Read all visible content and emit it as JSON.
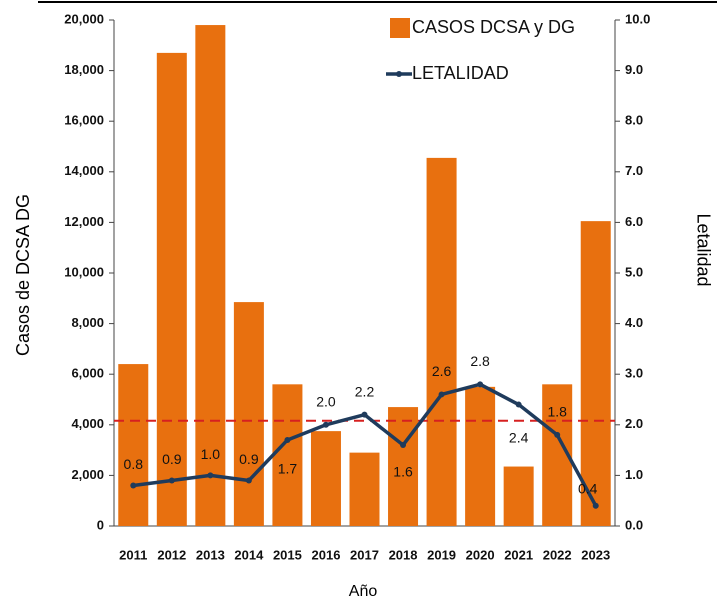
{
  "chart_data": {
    "type": "bar_line",
    "y_label": "Casos de DCSA  DG",
    "y2_label": "Letalidad",
    "x_label": "Año",
    "categories": [
      "2011",
      "2012",
      "2013",
      "2014",
      "2015",
      "2016",
      "2017",
      "2018",
      "2019",
      "2020",
      "2021",
      "2022",
      "2023"
    ],
    "series": [
      {
        "name": "CASOS DCSA y DG",
        "type": "bar",
        "color": "#e8700f",
        "values": [
          6400,
          18700,
          19800,
          8850,
          5600,
          3750,
          2900,
          4700,
          14550,
          5500,
          2350,
          5600,
          12050
        ]
      },
      {
        "name": "LETALIDAD",
        "type": "line",
        "axis": "y2",
        "color": "#1f3b5c",
        "values": [
          0.8,
          0.9,
          1.0,
          0.9,
          1.7,
          2.0,
          2.2,
          1.6,
          2.6,
          2.8,
          2.4,
          1.8,
          0.4
        ],
        "value_labels": [
          "0.8",
          "0.9",
          "1.0",
          "0.9",
          "1.7",
          "2.0",
          "2.2",
          "1.6",
          "2.6",
          "2.8",
          "2.4",
          "1.8",
          "0.4"
        ]
      }
    ],
    "ylim": [
      0,
      20000
    ],
    "yticks": [
      0,
      {
        "value": 2000,
        "label": "2,000"
      },
      {
        "value": 4000,
        "label": "4,000"
      },
      {
        "value": 6000,
        "label": "6,000"
      },
      {
        "value": 8000,
        "label": "8,000"
      },
      {
        "value": 10000,
        "label": "10,000"
      },
      {
        "value": 12000,
        "label": "12,000"
      },
      {
        "value": 14000,
        "label": "14,000"
      },
      {
        "value": 16000,
        "label": "16,000"
      },
      {
        "value": 18000,
        "label": "18,000"
      },
      {
        "value": 20000,
        "label": "20,000"
      }
    ],
    "y2lim": [
      0,
      10
    ],
    "y2ticks": [
      {
        "value": 0,
        "label": "0.0"
      },
      {
        "value": 1,
        "label": "1.0"
      },
      {
        "value": 2,
        "label": "2.0"
      },
      {
        "value": 3,
        "label": "3.0"
      },
      {
        "value": 4,
        "label": "4.0"
      },
      {
        "value": 5,
        "label": "5.0"
      },
      {
        "value": 6,
        "label": "6.0"
      },
      {
        "value": 7,
        "label": "7.0"
      },
      {
        "value": 8,
        "label": "8.0"
      },
      {
        "value": 9,
        "label": "9.0"
      },
      {
        "value": 10,
        "label": "10.0"
      }
    ],
    "reference_line": {
      "value": 2.08,
      "axis": "y2",
      "color": "#d62020"
    },
    "legend": "top-right"
  }
}
